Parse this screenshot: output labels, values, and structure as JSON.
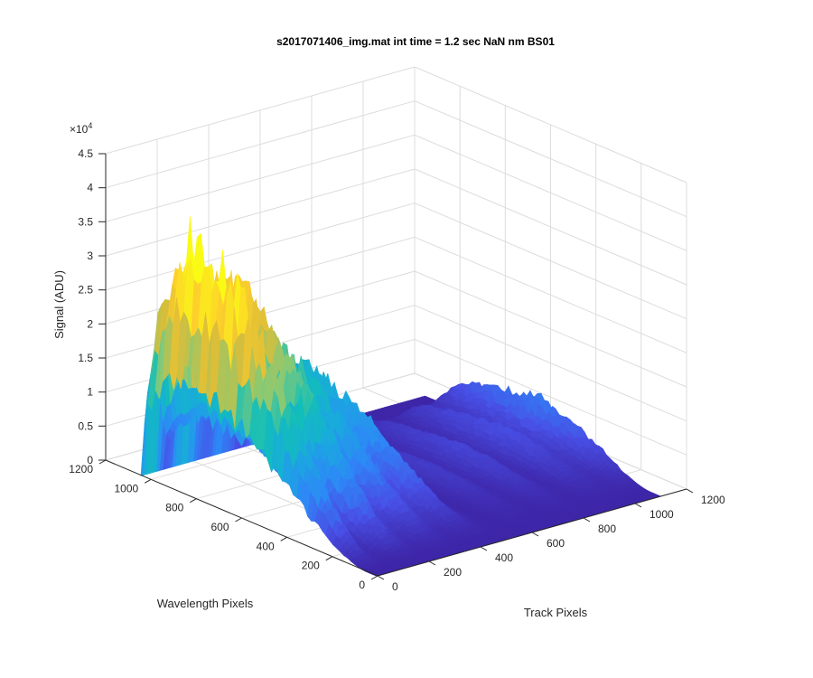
{
  "chart_data": {
    "type": "surface",
    "title": "s2017071406_img.mat int time = 1.2 sec  NaN nm BS01",
    "xlabel": "Track Pixels",
    "ylabel": "Wavelength Pixels",
    "zlabel": "Signal (ADU)",
    "z_multiplier_label": "×10",
    "z_multiplier_exp": "4",
    "xlim": [
      0,
      1200
    ],
    "ylim": [
      0,
      1200
    ],
    "zlim": [
      0,
      45000
    ],
    "x_ticks": [
      "0",
      "200",
      "400",
      "600",
      "800",
      "1000",
      "1200"
    ],
    "y_ticks": [
      "0",
      "200",
      "400",
      "600",
      "800",
      "1000",
      "1200"
    ],
    "z_ticks": [
      "0",
      "0.5",
      "1",
      "1.5",
      "2",
      "2.5",
      "3",
      "3.5",
      "4",
      "4.5"
    ],
    "z_tick_values": [
      0,
      5000,
      10000,
      15000,
      20000,
      25000,
      30000,
      35000,
      40000,
      45000
    ],
    "colormap": [
      "#3e26a8",
      "#4850e6",
      "#2e87f7",
      "#1aa9df",
      "#12beb9",
      "#80ca7a",
      "#dbbd39",
      "#fdcf2c",
      "#f9fb15"
    ],
    "peaks": [
      {
        "track_center": 30,
        "track_width": 28,
        "wavelength_start": 50,
        "wavelength_end": 1040,
        "wavelength_peak": 880,
        "signal_max": 36000
      },
      {
        "track_center": 160,
        "track_width": 40,
        "wavelength_start": 50,
        "wavelength_end": 1040,
        "wavelength_peak": 880,
        "signal_max": 29000
      },
      {
        "track_center": 300,
        "track_width": 45,
        "wavelength_start": 50,
        "wavelength_end": 1040,
        "wavelength_peak": 880,
        "signal_max": 19500
      },
      {
        "track_center": 440,
        "track_width": 42,
        "wavelength_start": 50,
        "wavelength_end": 1040,
        "wavelength_peak": 880,
        "signal_max": 14500
      },
      {
        "track_center": 650,
        "track_width": 40,
        "wavelength_start": 50,
        "wavelength_end": 950,
        "wavelength_peak": 560,
        "signal_max": 2200
      },
      {
        "track_center": 800,
        "track_width": 40,
        "wavelength_start": 50,
        "wavelength_end": 950,
        "wavelength_peak": 560,
        "signal_max": 3000
      },
      {
        "track_center": 960,
        "track_width": 40,
        "wavelength_start": 50,
        "wavelength_end": 950,
        "wavelength_peak": 560,
        "signal_max": 3800
      },
      {
        "track_center": 1100,
        "track_width": 45,
        "wavelength_start": 50,
        "wavelength_end": 950,
        "wavelength_peak": 560,
        "signal_max": 7000
      }
    ],
    "surface_extent": {
      "track": [
        0,
        1100
      ],
      "wavelength": [
        0,
        1040
      ]
    },
    "grid": true
  }
}
